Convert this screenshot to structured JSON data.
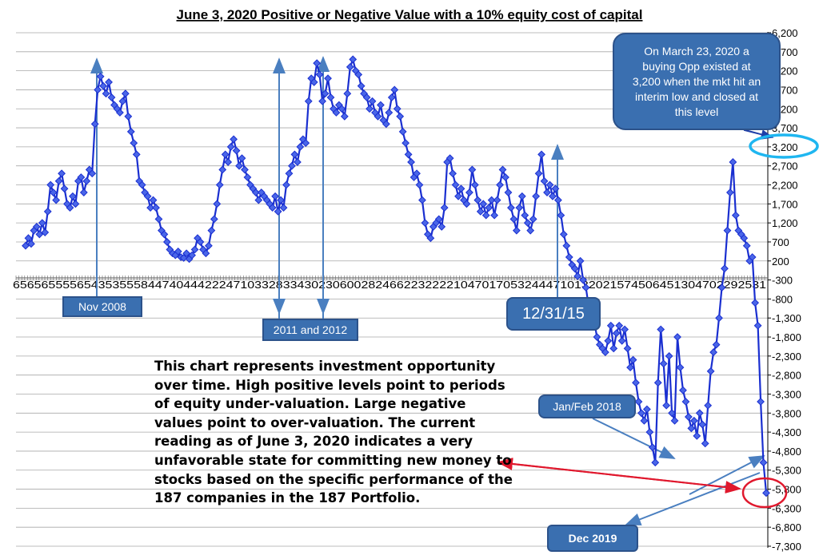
{
  "chart_data": {
    "type": "line",
    "title": "June 3, 2020 Positive or Negative Value with a 10% equity cost of capital",
    "xlabel": "",
    "ylabel": "",
    "y_ticks": [
      "6,200",
      "5,700",
      "5,200",
      "4,700",
      "4,200",
      "3,700",
      "3,200",
      "2,700",
      "2,200",
      "1,700",
      "1,200",
      "700",
      "200",
      "-300",
      "-800",
      "-1,300",
      "-1,800",
      "-2,300",
      "-2,800",
      "-3,300",
      "-3,800",
      "-4,300",
      "-4,800",
      "-5,300",
      "-5,800",
      "-6,300",
      "-6,800",
      "-7,300"
    ],
    "ylim": [
      -7300,
      6200
    ],
    "x_axis_text": "6565655556543535558447404442224710332833430230600282466223222210470170532444710132021574506451304702292531",
    "grid": true,
    "legend": "none",
    "series": [
      {
        "color": "#1a2fd0",
        "marker": "diamond",
        "y": [
          600,
          800,
          650,
          1000,
          1100,
          900,
          1200,
          950,
          1500,
          2200,
          2000,
          1800,
          2300,
          2500,
          2100,
          1700,
          1600,
          1900,
          1700,
          2300,
          2400,
          2000,
          2300,
          2600,
          2500,
          3800,
          4700,
          5050,
          4800,
          4600,
          4900,
          4500,
          4300,
          4200,
          4100,
          4400,
          4600,
          4000,
          3600,
          3300,
          3000,
          2300,
          2200,
          2000,
          1900,
          1600,
          1800,
          1600,
          1300,
          1000,
          900,
          700,
          500,
          400,
          350,
          450,
          300,
          280,
          400,
          250,
          350,
          500,
          800,
          700,
          500,
          400,
          600,
          1000,
          1300,
          1700,
          2200,
          2600,
          3000,
          2800,
          3200,
          3400,
          3100,
          2700,
          2900,
          2600,
          2400,
          2200,
          2100,
          2000,
          1800,
          2000,
          1900,
          1800,
          1700,
          1600,
          1900,
          1500,
          1800,
          1600,
          2200,
          2500,
          2700,
          3000,
          2800,
          3200,
          3400,
          3300,
          4400,
          5000,
          4900,
          5400,
          5100,
          4400,
          4600,
          5000,
          4500,
          4200,
          4100,
          4300,
          4200,
          4000,
          4600,
          5300,
          5500,
          5200,
          5100,
          4800,
          4600,
          4500,
          4200,
          4400,
          4100,
          4000,
          4300,
          3900,
          3800,
          4100,
          4500,
          4700,
          4200,
          4000,
          3600,
          3300,
          3000,
          2800,
          2400,
          2500,
          2200,
          1800,
          1200,
          900,
          800,
          1100,
          1200,
          1300,
          1100,
          1600,
          2800,
          2900,
          2500,
          2200,
          1900,
          2100,
          1800,
          1700,
          2000,
          2600,
          2200,
          1800,
          1500,
          1700,
          1400,
          1600,
          1800,
          1400,
          1800,
          2200,
          2600,
          2400,
          2000,
          1600,
          1300,
          1000,
          1600,
          1900,
          1400,
          1200,
          1000,
          1300,
          1900,
          2500,
          3000,
          2300,
          2000,
          2200,
          1900,
          2100,
          1800,
          1400,
          900,
          600,
          300,
          100,
          0,
          -200,
          200,
          -300,
          -500,
          -1000,
          -1300,
          -1400,
          -1800,
          -2000,
          -2100,
          -2200,
          -1900,
          -1500,
          -2100,
          -1700,
          -1500,
          -1900,
          -1600,
          -2100,
          -2600,
          -2400,
          -3000,
          -3500,
          -3800,
          -4000,
          -3700,
          -4300,
          -4700,
          -5100,
          -3000,
          -1600,
          -2500,
          -3600,
          -2300,
          -3800,
          -4000,
          -1800,
          -2600,
          -3200,
          -3500,
          -3900,
          -4200,
          -4000,
          -4400,
          -3800,
          -4100,
          -4600,
          -3600,
          -2700,
          -2200,
          -2000,
          -1300,
          -500,
          0,
          1000,
          2000,
          2800,
          1400,
          1000,
          900,
          800,
          600,
          200,
          300,
          -900,
          -1500,
          -3500,
          -5100,
          -5900
        ]
      }
    ]
  },
  "callouts": {
    "march_2020": "On March 23, 2020 a buying Opp existed at 3,200 when the mkt hit an interim low and closed at this level",
    "nov_2008": "Nov 2008",
    "y2011_2012": "2011 and 2012",
    "dec_2015": "12/31/15",
    "jan_feb_2018": "Jan/Feb 2018",
    "dec_2019": "Dec 2019"
  },
  "note": "This chart represents investment opportunity over time. High positive levels point to periods of equity under-valuation. Large negative values point to over-valuation. The current reading as of June 3, 2020 indicates a very unfavorable state for committing new money to stocks based on the specific performance of the 187 companies in the 187 Portfolio.",
  "colors": {
    "series": "#1a2fd0",
    "marker_fill": "#4a66e8",
    "callout_fill": "#3a6fb0",
    "pointer_line": "#4a7fc0",
    "highlight_ring_cyan": "#1fb6f0",
    "highlight_ring_red": "#e0182d",
    "red_arrow": "#e0182d"
  }
}
